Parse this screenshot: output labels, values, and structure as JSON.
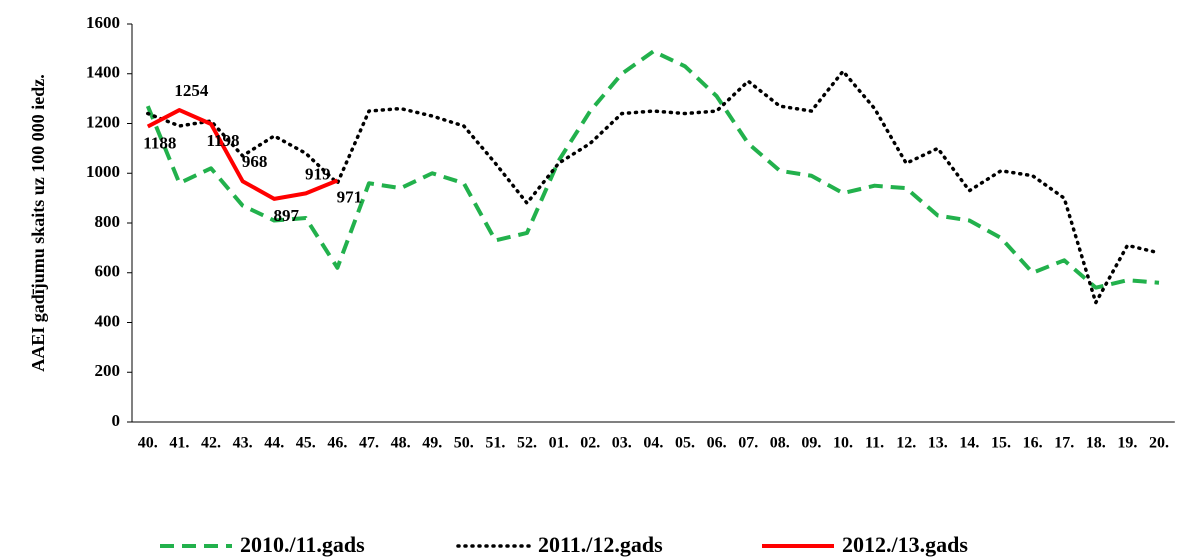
{
  "chart_data": {
    "type": "line",
    "y_label": "AAEI gadījumu skaits uz 100 000 iedz.",
    "categories": [
      "40.",
      "41.",
      "42.",
      "43.",
      "44.",
      "45.",
      "46.",
      "47.",
      "48.",
      "49.",
      "50.",
      "51.",
      "52.",
      "01.",
      "02.",
      "03.",
      "04.",
      "05.",
      "06.",
      "07.",
      "08.",
      "09.",
      "10.",
      "11.",
      "12.",
      "13.",
      "14.",
      "15.",
      "16.",
      "17.",
      "18.",
      "19.",
      "20."
    ],
    "ylim": [
      0,
      1600
    ],
    "yticks": [
      0,
      200,
      400,
      600,
      800,
      1000,
      1200,
      1400,
      1600
    ],
    "grid": false,
    "legend": "bottom",
    "series": [
      {
        "name": "2010./11.gads",
        "color": "#22b14c",
        "dash": "dashed",
        "show_values": false,
        "values": [
          1270,
          960,
          1020,
          870,
          810,
          820,
          620,
          960,
          940,
          1000,
          960,
          730,
          760,
          1050,
          1250,
          1400,
          1490,
          1430,
          1310,
          1120,
          1010,
          990,
          920,
          950,
          940,
          830,
          810,
          740,
          600,
          650,
          540,
          570,
          560
        ]
      },
      {
        "name": "2011./12.gads",
        "color": "#000000",
        "dash": "dotted",
        "show_values": false,
        "values": [
          1240,
          1190,
          1210,
          1070,
          1150,
          1080,
          960,
          1250,
          1260,
          1230,
          1190,
          1040,
          880,
          1040,
          1120,
          1240,
          1250,
          1240,
          1250,
          1370,
          1270,
          1250,
          1410,
          1260,
          1040,
          1100,
          930,
          1010,
          990,
          900,
          480,
          710,
          680
        ]
      },
      {
        "name": "2012./13.gads",
        "color": "#ff0000",
        "dash": "solid",
        "show_values": true,
        "values": [
          1188,
          1254,
          1198,
          968,
          897,
          919,
          971,
          null,
          null,
          null,
          null,
          null,
          null,
          null,
          null,
          null,
          null,
          null,
          null,
          null,
          null,
          null,
          null,
          null,
          null,
          null,
          null,
          null,
          null,
          null,
          null,
          null,
          null
        ]
      }
    ]
  }
}
